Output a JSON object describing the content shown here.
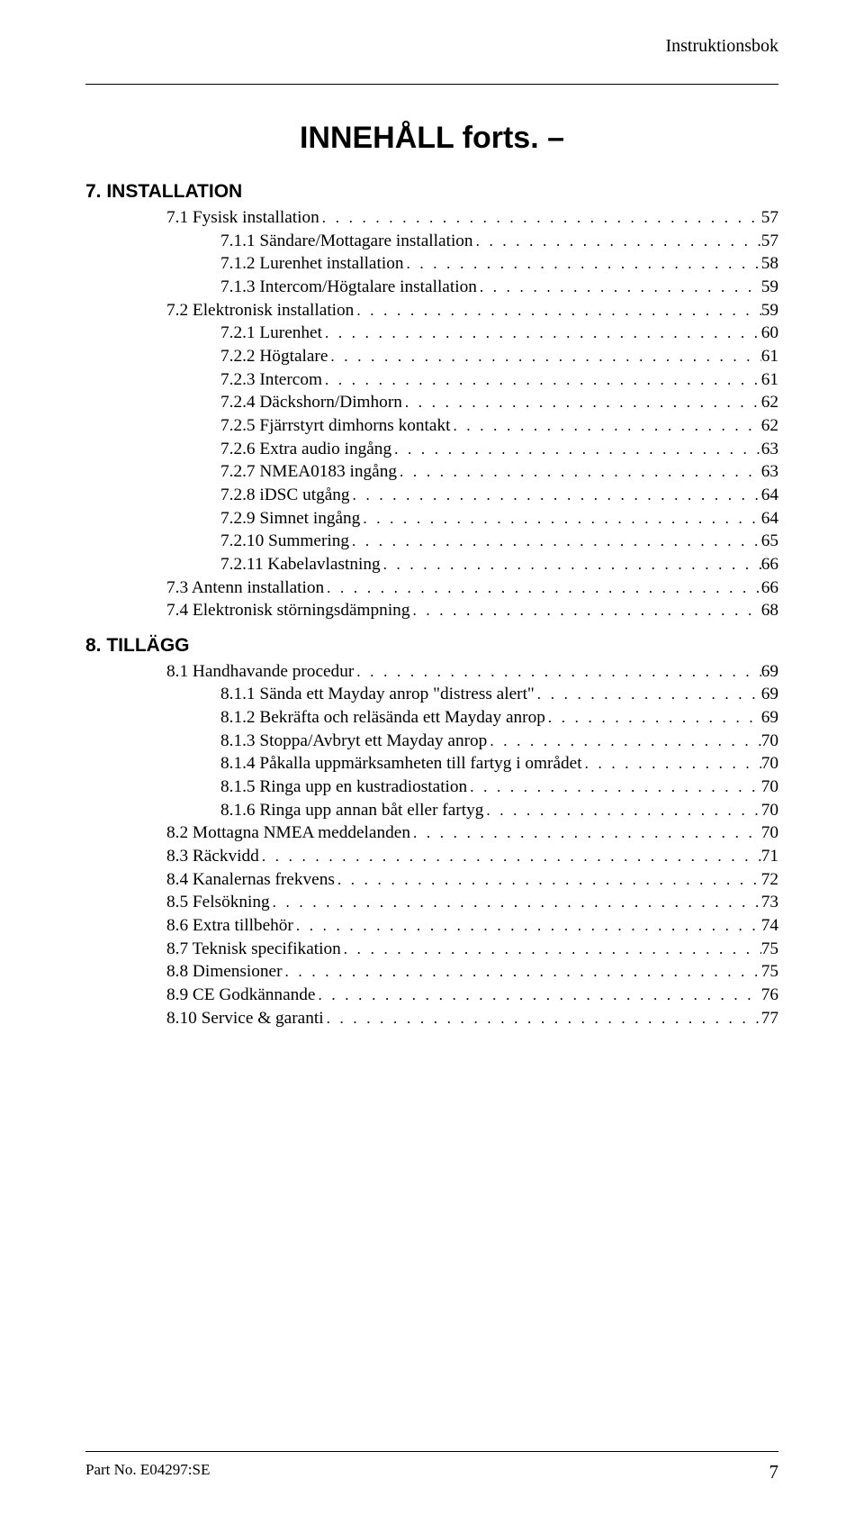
{
  "header": {
    "doc_type": "Instruktionsbok"
  },
  "title": "INNEHÅLL forts. –",
  "sections": {
    "s7": {
      "heading": "7. INSTALLATION",
      "entries": [
        {
          "indent": 1,
          "label": "7.1 Fysisk installation",
          "page": "57"
        },
        {
          "indent": 2,
          "label": "7.1.1 Sändare/Mottagare installation",
          "page": "57"
        },
        {
          "indent": 2,
          "label": "7.1.2 Lurenhet installation",
          "page": "58"
        },
        {
          "indent": 2,
          "label": "7.1.3 Intercom/Högtalare installation",
          "page": "59"
        },
        {
          "indent": 1,
          "label": "7.2 Elektronisk installation",
          "page": "59"
        },
        {
          "indent": 2,
          "label": "7.2.1 Lurenhet",
          "page": "60"
        },
        {
          "indent": 2,
          "label": "7.2.2 Högtalare",
          "page": "61"
        },
        {
          "indent": 2,
          "label": "7.2.3 Intercom",
          "page": "61"
        },
        {
          "indent": 2,
          "label": "7.2.4 Däckshorn/Dimhorn",
          "page": "62"
        },
        {
          "indent": 2,
          "label": "7.2.5 Fjärrstyrt dimhorns kontakt",
          "page": "62"
        },
        {
          "indent": 2,
          "label": "7.2.6 Extra audio ingång",
          "page": "63"
        },
        {
          "indent": 2,
          "label": "7.2.7 NMEA0183 ingång",
          "page": "63"
        },
        {
          "indent": 2,
          "label": "7.2.8 iDSC utgång",
          "page": "64"
        },
        {
          "indent": 2,
          "label": "7.2.9 Simnet ingång",
          "page": "64"
        },
        {
          "indent": 2,
          "label": "7.2.10 Summering",
          "page": "65"
        },
        {
          "indent": 2,
          "label": "7.2.11 Kabelavlastning",
          "page": "66"
        },
        {
          "indent": 1,
          "label": "7.3 Antenn installation",
          "page": "66"
        },
        {
          "indent": 1,
          "label": "7.4 Elektronisk störningsdämpning",
          "page": "68"
        }
      ]
    },
    "s8": {
      "heading": "8. TILLÄGG",
      "entries": [
        {
          "indent": 1,
          "label": "8.1 Handhavande procedur",
          "page": "69"
        },
        {
          "indent": 2,
          "label": "8.1.1 Sända ett Mayday anrop \"distress alert\"",
          "page": "69"
        },
        {
          "indent": 2,
          "label": "8.1.2 Bekräfta och reläsända ett Mayday anrop",
          "page": "69"
        },
        {
          "indent": 2,
          "label": "8.1.3 Stoppa/Avbryt ett Mayday anrop",
          "page": "70"
        },
        {
          "indent": 2,
          "label": "8.1.4 Påkalla uppmärksamheten till fartyg i området",
          "page": "70"
        },
        {
          "indent": 2,
          "label": "8.1.5 Ringa upp en kustradiostation",
          "page": "70"
        },
        {
          "indent": 2,
          "label": "8.1.6 Ringa upp annan båt eller fartyg",
          "page": "70"
        },
        {
          "indent": 1,
          "label": "8.2 Mottagna NMEA meddelanden",
          "page": "70"
        },
        {
          "indent": 1,
          "label": "8.3 Räckvidd",
          "page": "71"
        },
        {
          "indent": 1,
          "label": "8.4 Kanalernas frekvens",
          "page": "72"
        },
        {
          "indent": 1,
          "label": "8.5 Felsökning",
          "page": "73"
        },
        {
          "indent": 1,
          "label": "8.6 Extra tillbehör",
          "page": "74"
        },
        {
          "indent": 1,
          "label": "8.7 Teknisk specifikation",
          "page": "75"
        },
        {
          "indent": 1,
          "label": "8.8 Dimensioner",
          "page": "75"
        },
        {
          "indent": 1,
          "label": "8.9 CE Godkännande",
          "page": "76"
        },
        {
          "indent": 1,
          "label": "8.10 Service & garanti",
          "page": "77"
        }
      ]
    }
  },
  "footer": {
    "part_no": "Part No. E04297:SE",
    "page_num": "7"
  },
  "style": {
    "dot_fill": ". . . . . . . . . . . . . . . . . . . . . . . . . . . . . . . . . . . . . . . . . . . . . . . . . . . . . . . . . . . . . . . . . . . . . . . . . . . . . . . . . . . . . . . . . . . . . . . . . . . . . . . . . . . . . . . . . . . . . . . . . . . . . . . . . . . . . . . . . . . ."
  }
}
